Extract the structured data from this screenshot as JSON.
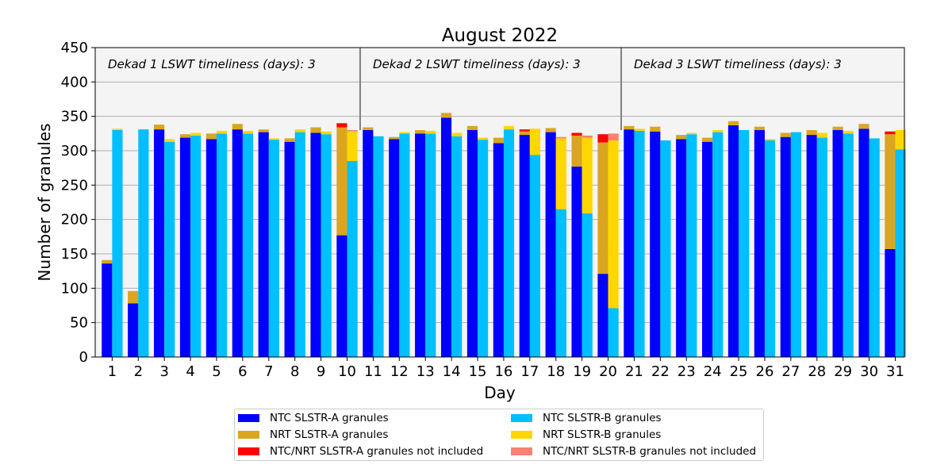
{
  "chart_data": {
    "type": "bar",
    "title": "August 2022",
    "xlabel": "Day",
    "ylabel": "Number of granules",
    "ylim": [
      0,
      450
    ],
    "yticks": [
      0,
      50,
      100,
      150,
      200,
      250,
      300,
      350,
      400,
      450
    ],
    "categories": [
      "1",
      "2",
      "3",
      "4",
      "5",
      "6",
      "7",
      "8",
      "9",
      "10",
      "11",
      "12",
      "13",
      "14",
      "15",
      "16",
      "17",
      "18",
      "19",
      "20",
      "21",
      "22",
      "23",
      "24",
      "25",
      "26",
      "27",
      "28",
      "29",
      "30",
      "31"
    ],
    "grid": true,
    "legend_position": "bottom",
    "dekad_labels": [
      "Dekad 1 LSWT timeliness (days): 3",
      "Dekad 2 LSWT timeliness (days): 3",
      "Dekad 3 LSWT timeliness (days): 3"
    ],
    "dekad_boundaries": [
      10.5,
      20.5
    ],
    "series": [
      {
        "name": "NTC SLSTR-A granules",
        "color": "#0000ff",
        "satellite": "A",
        "values": [
          136,
          78,
          331,
          319,
          317,
          331,
          327,
          313,
          326,
          177,
          330,
          317,
          325,
          348,
          330,
          311,
          323,
          327,
          277,
          121,
          331,
          328,
          317,
          313,
          337,
          330,
          320,
          323,
          330,
          332,
          157
        ]
      },
      {
        "name": "NRT SLSTR-A granules",
        "color": "#daa520",
        "satellite": "A",
        "values": [
          5,
          18,
          7,
          5,
          8,
          8,
          4,
          5,
          8,
          157,
          4,
          3,
          5,
          7,
          6,
          8,
          5,
          6,
          45,
          191,
          5,
          7,
          6,
          6,
          6,
          5,
          6,
          7,
          5,
          7,
          167
        ]
      },
      {
        "name": "NTC/NRT SLSTR-A granules not included",
        "color": "#ff0000",
        "satellite": "A",
        "values": [
          0,
          0,
          0,
          0,
          0,
          0,
          0,
          0,
          0,
          6,
          0,
          0,
          0,
          0,
          0,
          0,
          3,
          0,
          4,
          12,
          0,
          0,
          0,
          0,
          0,
          0,
          0,
          0,
          0,
          0,
          4
        ]
      },
      {
        "name": "NTC SLSTR-B granules",
        "color": "#00bfff",
        "satellite": "B",
        "values": [
          330,
          331,
          313,
          322,
          325,
          325,
          316,
          327,
          324,
          285,
          321,
          325,
          325,
          321,
          316,
          331,
          294,
          215,
          209,
          71,
          329,
          315,
          324,
          327,
          330,
          315,
          327,
          319,
          325,
          318,
          302
        ]
      },
      {
        "name": "NRT SLSTR-B granules",
        "color": "#ffd700",
        "satellite": "B",
        "values": [
          2,
          0,
          4,
          4,
          4,
          4,
          2,
          4,
          4,
          43,
          0,
          2,
          4,
          5,
          3,
          5,
          38,
          103,
          110,
          244,
          3,
          0,
          2,
          3,
          0,
          2,
          0,
          7,
          4,
          0,
          28
        ]
      },
      {
        "name": "NTC/NRT SLSTR-B granules not included",
        "color": "#fa8072",
        "satellite": "B",
        "values": [
          0,
          0,
          0,
          0,
          0,
          0,
          0,
          0,
          0,
          2,
          0,
          0,
          0,
          0,
          0,
          0,
          0,
          2,
          3,
          10,
          0,
          0,
          0,
          0,
          0,
          0,
          0,
          0,
          0,
          0,
          0
        ]
      }
    ]
  }
}
